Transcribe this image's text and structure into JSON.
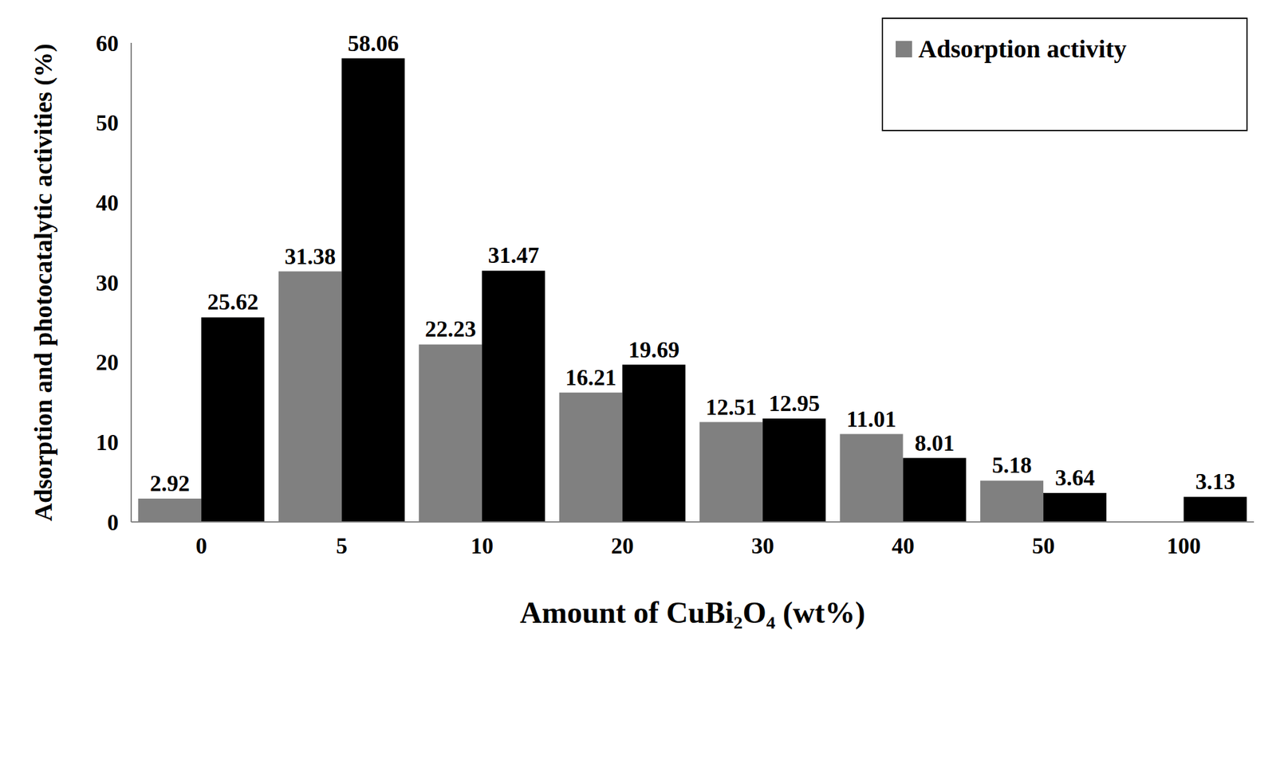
{
  "chart_data": {
    "type": "bar",
    "x_label": "Amount of CuBi₂O₄ (wt%)",
    "y_label": "Adsorption and photocatalytic activities (%)",
    "categories": [
      "0",
      "5",
      "10",
      "20",
      "30",
      "40",
      "50",
      "100"
    ],
    "series": [
      {
        "name": "Adsorption activity",
        "color": "#808080",
        "values": [
          2.92,
          31.38,
          22.23,
          16.21,
          12.51,
          11.01,
          5.18,
          0
        ]
      },
      {
        "color": "#000000",
        "values": [
          25.62,
          58.06,
          31.47,
          19.69,
          12.95,
          8.01,
          3.64,
          3.13
        ]
      }
    ],
    "ylim": [
      0,
      60
    ],
    "yticks": [
      0,
      10,
      20,
      30,
      40,
      50,
      60
    ],
    "data_labels": true,
    "grid": false,
    "legend": "top-right"
  }
}
